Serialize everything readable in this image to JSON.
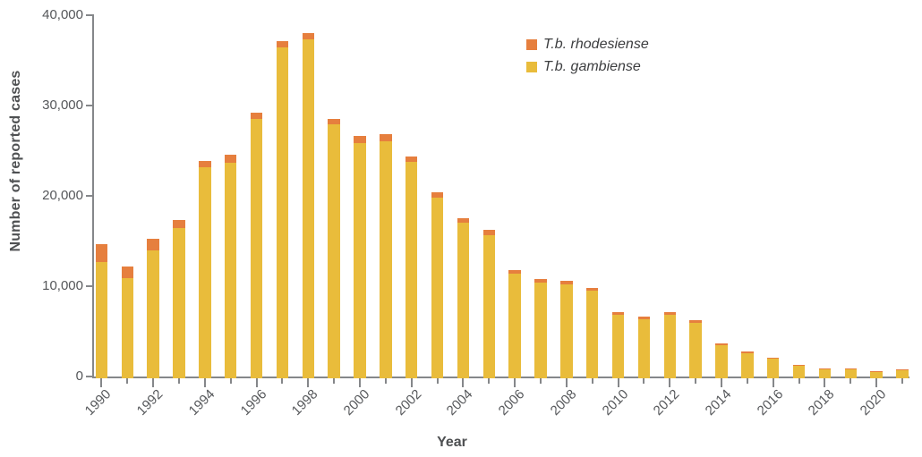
{
  "chart_data": {
    "type": "bar",
    "stacked": true,
    "xlabel": "Year",
    "ylabel": "Number of reported cases",
    "ylim": [
      0,
      40000
    ],
    "yticks": [
      0,
      10000,
      20000,
      30000,
      40000
    ],
    "ytick_labels": [
      "0",
      "10,000",
      "20,000",
      "30,000",
      "40,000"
    ],
    "x": [
      1990,
      1991,
      1992,
      1993,
      1994,
      1995,
      1996,
      1997,
      1998,
      1999,
      2000,
      2001,
      2002,
      2003,
      2004,
      2005,
      2006,
      2007,
      2008,
      2009,
      2010,
      2011,
      2012,
      2013,
      2014,
      2015,
      2016,
      2017,
      2018,
      2019,
      2020,
      2021
    ],
    "xtick_label_years": [
      1990,
      1992,
      1994,
      1996,
      1998,
      2000,
      2002,
      2004,
      2006,
      2008,
      2010,
      2012,
      2014,
      2016,
      2018,
      2020
    ],
    "grid": false,
    "legend_position": "top-center",
    "series": [
      {
        "name": "T.b. rhodesiense",
        "color": "#e67f3e",
        "values": [
          2000,
          1300,
          1200,
          900,
          700,
          900,
          750,
          700,
          700,
          600,
          850,
          850,
          600,
          600,
          500,
          650,
          400,
          350,
          400,
          300,
          300,
          250,
          300,
          250,
          180,
          130,
          100,
          90,
          80,
          90,
          70,
          90
        ]
      },
      {
        "name": "T.b. gambiense",
        "color": "#e9bc3b",
        "values": [
          12700,
          10900,
          14000,
          16450,
          23150,
          23700,
          28500,
          36400,
          37300,
          27900,
          25800,
          26000,
          23750,
          19800,
          17000,
          15600,
          11400,
          10400,
          10200,
          9500,
          6800,
          6350,
          6850,
          5950,
          3500,
          2600,
          1950,
          1230,
          850,
          850,
          500,
          700
        ]
      }
    ]
  },
  "colors": {
    "axis": "#85878a",
    "tick_label": "#55575a",
    "axis_title": "#4e5052",
    "legend_text": "#3d3e40",
    "background": "#ffffff"
  }
}
